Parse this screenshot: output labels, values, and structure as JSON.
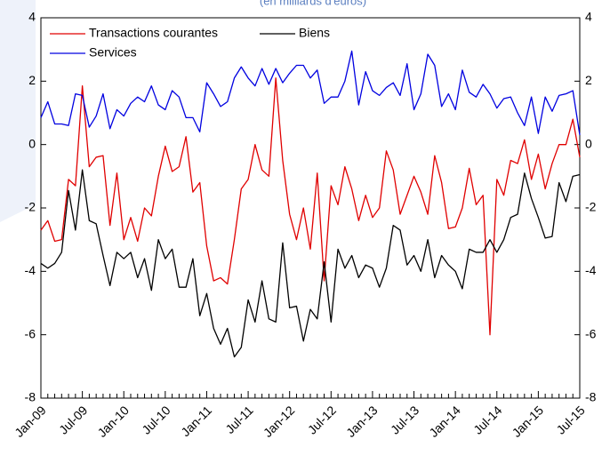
{
  "chart_data": {
    "type": "line",
    "subtitle": "(en milliards d'euros)",
    "categories": [
      "Jan-09",
      null,
      null,
      null,
      null,
      null,
      "Jul-09",
      null,
      null,
      null,
      null,
      null,
      "Jan-10",
      null,
      null,
      null,
      null,
      null,
      "Jul-10",
      null,
      null,
      null,
      null,
      null,
      "Jan-11",
      null,
      null,
      null,
      null,
      null,
      "Jul-11",
      null,
      null,
      null,
      null,
      null,
      "Jan-12",
      null,
      null,
      null,
      null,
      null,
      "Jul-12",
      null,
      null,
      null,
      null,
      null,
      "Jan-13",
      null,
      null,
      null,
      null,
      null,
      "Jul-13",
      null,
      null,
      null,
      null,
      null,
      "Jan-14",
      null,
      null,
      null,
      null,
      null,
      "Jul-14",
      null,
      null,
      null,
      null,
      null,
      "Jan-15",
      null,
      null,
      null,
      null,
      null,
      "Jul-15"
    ],
    "series": [
      {
        "name": "Transactions courantes",
        "color": "#e00000",
        "values": [
          -2.7,
          -2.4,
          -3.05,
          -3.0,
          -1.1,
          -1.3,
          1.85,
          -0.7,
          -0.4,
          -0.35,
          -2.55,
          -0.9,
          -3.0,
          -2.3,
          -3.05,
          -2.0,
          -2.25,
          -1.0,
          -0.05,
          -0.85,
          -0.7,
          0.25,
          -1.5,
          -1.2,
          -3.2,
          -4.3,
          -4.2,
          -4.4,
          -3.0,
          -1.4,
          -1.1,
          0.0,
          -0.8,
          -1.0,
          2.1,
          -0.5,
          -2.2,
          -3.0,
          -2.0,
          -3.3,
          -0.9,
          -4.3,
          -1.3,
          -1.9,
          -0.7,
          -1.4,
          -2.4,
          -1.6,
          -2.3,
          -2.0,
          -0.2,
          -0.8,
          -2.2,
          -1.6,
          -1.0,
          -1.5,
          -2.2,
          -0.35,
          -1.2,
          -2.65,
          -2.6,
          -2.0,
          -0.75,
          -1.9,
          -1.6,
          -6.0,
          -1.1,
          -1.6,
          -0.5,
          -0.6,
          0.15,
          -1.1,
          -0.3,
          -1.4,
          -0.6,
          0.0,
          0.0,
          0.8,
          -0.4
        ]
      },
      {
        "name": "Biens",
        "color": "#000000",
        "values": [
          -3.75,
          -3.9,
          -3.75,
          -3.4,
          -1.45,
          -2.7,
          -0.8,
          -2.4,
          -2.5,
          -3.5,
          -4.45,
          -3.4,
          -3.6,
          -3.4,
          -4.2,
          -3.6,
          -4.6,
          -3.0,
          -3.6,
          -3.3,
          -4.5,
          -4.5,
          -3.6,
          -5.4,
          -4.7,
          -5.8,
          -6.3,
          -5.8,
          -6.7,
          -6.4,
          -4.9,
          -5.6,
          -4.3,
          -5.5,
          -5.6,
          -3.1,
          -5.15,
          -5.1,
          -6.2,
          -5.2,
          -5.5,
          -3.7,
          -5.6,
          -3.3,
          -3.9,
          -3.5,
          -4.2,
          -3.8,
          -3.9,
          -4.5,
          -3.9,
          -2.55,
          -2.7,
          -3.8,
          -3.5,
          -4.0,
          -3.0,
          -4.2,
          -3.5,
          -3.8,
          -4.0,
          -4.55,
          -3.3,
          -3.4,
          -3.4,
          -3.0,
          -3.4,
          -3.0,
          -2.3,
          -2.2,
          -0.9,
          -1.7,
          -2.3,
          -2.95,
          -2.9,
          -1.2,
          -1.8,
          -1.0,
          -0.95
        ]
      },
      {
        "name": "Services",
        "color": "#0000e0",
        "values": [
          0.85,
          1.35,
          0.65,
          0.65,
          0.6,
          1.6,
          1.55,
          0.55,
          0.9,
          1.6,
          0.5,
          1.1,
          0.9,
          1.3,
          1.5,
          1.35,
          1.85,
          1.25,
          1.1,
          1.7,
          1.5,
          0.85,
          0.85,
          0.4,
          1.95,
          1.6,
          1.2,
          1.35,
          2.1,
          2.45,
          2.1,
          1.85,
          2.4,
          1.9,
          2.4,
          1.95,
          2.25,
          2.5,
          2.5,
          2.1,
          2.35,
          1.3,
          1.5,
          1.5,
          2.0,
          2.95,
          1.25,
          2.3,
          1.7,
          1.55,
          1.8,
          1.95,
          1.55,
          2.55,
          1.1,
          1.6,
          2.85,
          2.5,
          1.2,
          1.6,
          1.1,
          2.35,
          1.65,
          1.5,
          1.9,
          1.6,
          1.15,
          1.45,
          1.5,
          1.0,
          0.6,
          1.5,
          0.35,
          1.5,
          1.05,
          1.55,
          1.6,
          1.7,
          0.3
        ]
      }
    ],
    "ylim": [
      -8,
      4
    ],
    "yticks": [
      -8,
      -6,
      -4,
      -2,
      0,
      2,
      4
    ],
    "legend": "upper left"
  }
}
